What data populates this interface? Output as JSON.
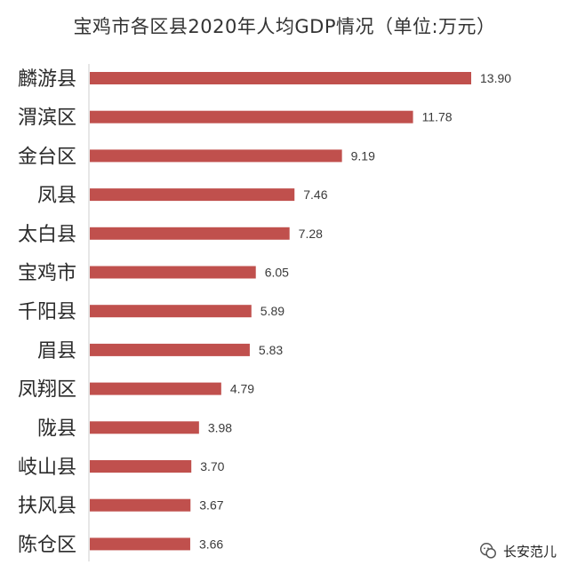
{
  "chart_data": {
    "type": "bar",
    "orientation": "horizontal",
    "title": "宝鸡市各区县2020年人均GDP情况（单位:万元）",
    "categories": [
      "麟游县",
      "渭滨区",
      "金台区",
      "凤县",
      "太白县",
      "宝鸡市",
      "千阳县",
      "眉县",
      "凤翔区",
      "陇县",
      "岐山县",
      "扶风县",
      "陈仓区"
    ],
    "values": [
      13.9,
      11.78,
      9.19,
      7.46,
      7.28,
      6.05,
      5.89,
      5.83,
      4.79,
      3.98,
      3.7,
      3.67,
      3.66
    ],
    "value_labels": [
      "13.90",
      "11.78",
      "9.19",
      "7.46",
      "7.28",
      "6.05",
      "5.89",
      "5.83",
      "4.79",
      "3.98",
      "3.70",
      "3.67",
      "3.66"
    ],
    "bar_color": "#c0504d",
    "grid": false,
    "legend": "none"
  },
  "watermark": {
    "text": "长安范儿",
    "icon": "wechat-icon"
  }
}
